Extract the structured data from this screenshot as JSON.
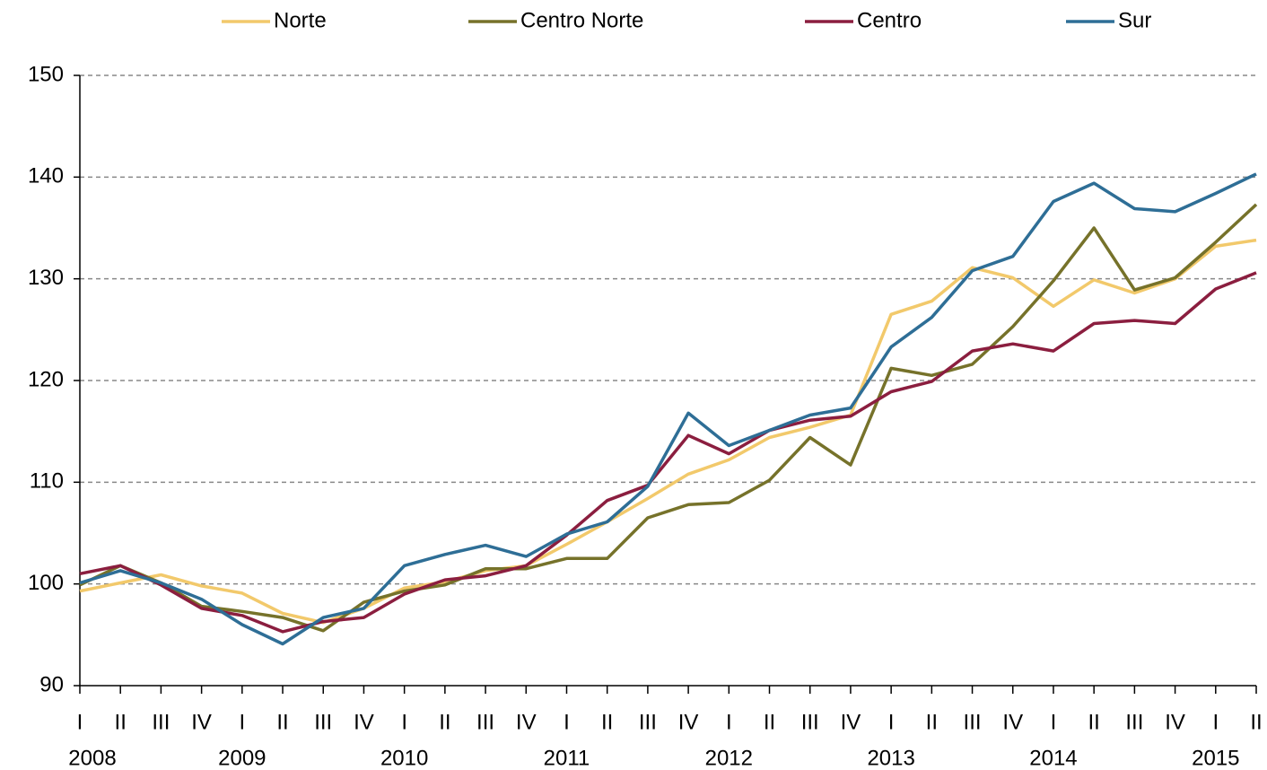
{
  "chart_data": {
    "type": "line",
    "categories": [
      "I",
      "II",
      "III",
      "IV",
      "I",
      "II",
      "III",
      "IV",
      "I",
      "II",
      "III",
      "IV",
      "I",
      "II",
      "III",
      "IV",
      "I",
      "II",
      "III",
      "IV",
      "I",
      "II",
      "III",
      "IV",
      "I",
      "II",
      "III",
      "IV",
      "I",
      "II"
    ],
    "years": [
      "2008",
      null,
      null,
      null,
      "2009",
      null,
      null,
      null,
      "2010",
      null,
      null,
      null,
      "2011",
      null,
      null,
      null,
      "2012",
      null,
      null,
      null,
      "2013",
      null,
      null,
      null,
      "2014",
      null,
      null,
      null,
      "2015",
      null
    ],
    "series": [
      {
        "name": "Norte",
        "color": "#f2c96b",
        "values": [
          99.3,
          100.1,
          100.9,
          99.8,
          99.1,
          97.1,
          96.2,
          97.6,
          99.6,
          100.2,
          101.3,
          101.8,
          103.9,
          106.1,
          108.4,
          110.8,
          112.2,
          114.4,
          115.4,
          116.6,
          126.5,
          127.8,
          131.1,
          130.1,
          127.3,
          129.9,
          128.6,
          130.0,
          133.2,
          133.8
        ]
      },
      {
        "name": "Centro Norte",
        "color": "#76722a",
        "values": [
          99.9,
          101.8,
          100.1,
          97.8,
          97.3,
          96.7,
          95.4,
          98.2,
          99.3,
          99.9,
          101.5,
          101.5,
          102.5,
          102.5,
          106.5,
          107.8,
          108.0,
          110.2,
          114.4,
          111.7,
          121.2,
          120.5,
          121.6,
          125.3,
          129.8,
          135.0,
          128.9,
          130.1,
          133.6,
          137.3
        ]
      },
      {
        "name": "Centro",
        "color": "#8b1e3f",
        "values": [
          101.0,
          101.8,
          99.9,
          97.6,
          96.9,
          95.3,
          96.3,
          96.7,
          99.0,
          100.4,
          100.8,
          101.8,
          104.8,
          108.2,
          109.7,
          114.6,
          112.8,
          115.1,
          116.1,
          116.5,
          118.9,
          119.9,
          122.9,
          123.6,
          122.9,
          125.6,
          125.9,
          125.6,
          129.0,
          130.6
        ]
      },
      {
        "name": "Sur",
        "color": "#2e6e96",
        "values": [
          100.1,
          101.3,
          100.1,
          98.5,
          96.0,
          94.1,
          96.7,
          97.6,
          101.8,
          102.9,
          103.8,
          102.7,
          104.9,
          106.1,
          109.6,
          116.8,
          113.6,
          115.1,
          116.6,
          117.3,
          123.3,
          126.2,
          130.8,
          132.2,
          137.6,
          139.4,
          136.9,
          136.6,
          138.4,
          140.3
        ]
      }
    ],
    "ylim": [
      90,
      150
    ],
    "yticks": [
      90,
      100,
      110,
      120,
      130,
      140,
      150
    ],
    "grid": true,
    "legend": "top"
  }
}
